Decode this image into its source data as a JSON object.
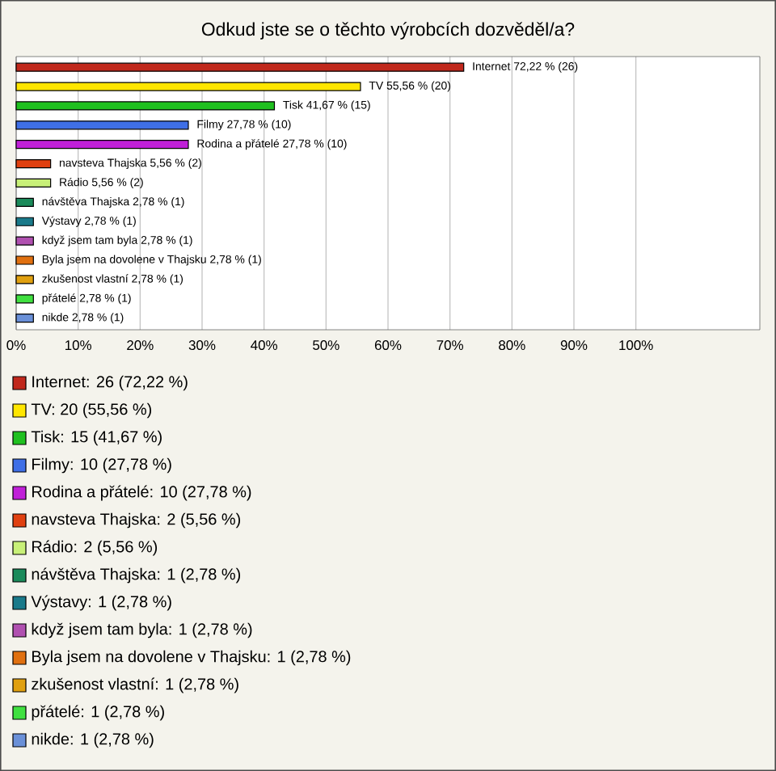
{
  "chart_data": {
    "type": "bar",
    "orientation": "horizontal",
    "title": "Odkud jste se o těchto výrobcích dozvěděl/a?",
    "categories": [
      null,
      null,
      null,
      null,
      null,
      null,
      null,
      null,
      null,
      null,
      null,
      null,
      null,
      null
    ],
    "values": [
      72.22,
      55.56,
      41.67,
      27.78,
      27.78,
      5.56,
      5.56,
      2.78,
      2.78,
      2.78,
      2.78,
      2.78,
      2.78,
      2.78
    ],
    "value_labels": [
      "Internet 72,22 % (26)",
      "TV 55,56 % (20)",
      "Tisk 41,67 % (15)",
      "Filmy 27,78 % (10)",
      "Rodina a přátelé 27,78 % (10)",
      "navsteva Thajska 5,56 % (2)",
      "Rádio 5,56 % (2)",
      "návštěva Thajska 2,78 % (1)",
      "Výstavy 2,78 % (1)",
      "když jsem tam byla 2,78 % (1)",
      "Byla jsem na dovolene v Thajsku 2,78 % (1)",
      "zkušenost vlastní 2,78 % (1)",
      "přátelé 2,78 % (1)",
      "nikde 2,78 % (1)"
    ],
    "colors": [
      "#c0281c",
      "#ffe600",
      "#1fc01f",
      "#3f6fe6",
      "#c020d8",
      "#e04010",
      "#c8f078",
      "#1a8a5a",
      "#1a7a8a",
      "#b050b0",
      "#e07010",
      "#e0a010",
      "#40e040",
      "#6a90d8"
    ],
    "xlim": [
      0,
      120
    ],
    "xticks": [
      {
        "value": 0,
        "label": "0%"
      },
      {
        "value": 10,
        "label": "10%"
      },
      {
        "value": 20,
        "label": "20%"
      },
      {
        "value": 30,
        "label": "30%"
      },
      {
        "value": 40,
        "label": "40%"
      },
      {
        "value": 50,
        "label": "50%"
      },
      {
        "value": 60,
        "label": "60%"
      },
      {
        "value": 70,
        "label": "70%"
      },
      {
        "value": 80,
        "label": "80%"
      },
      {
        "value": 90,
        "label": "90%"
      },
      {
        "value": 100,
        "label": "100%"
      }
    ],
    "grid": "x",
    "tick_labels": "x",
    "annotations": [
      "Internet: 26 (72,22 %)",
      "TV: 20 (55,56 %)",
      "Tisk: 15 (41,67 %)",
      "Filmy: 10 (27,78 %)",
      "Rodina a přátelé: 10 (27,78 %)",
      "navsteva Thajska: 2 (5,56 %)",
      "Rádio: 2 (5,56 %)",
      "návštěva Thajska: 1 (2,78 %)",
      "Výstavy: 1 (2,78 %)",
      "když jsem tam byla: 1 (2,78 %)",
      "Byla jsem na dovolene v Thajsku: 1 (2,78 %)",
      "zkušenost vlastní: 1 (2,78 %)",
      "přátelé: 1 (2,78 %)",
      "nikde: 1 (2,78 %)"
    ]
  }
}
